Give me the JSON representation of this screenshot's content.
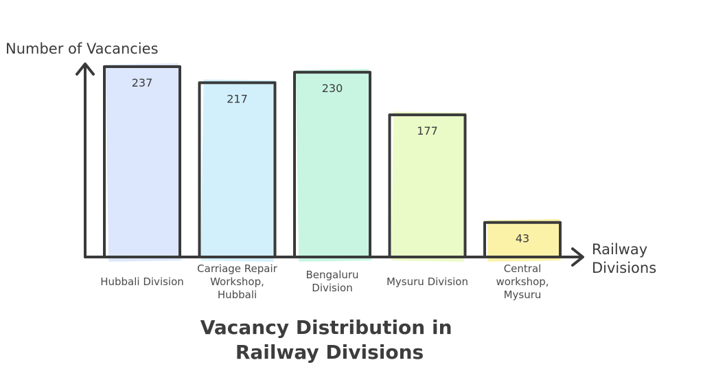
{
  "chart_data": {
    "type": "bar",
    "title": "Vacancy Distribution in Railway Divisions",
    "title_lines": [
      "Vacancy Distribution in",
      "Railway Divisions"
    ],
    "xlabel": "Railway Divisions",
    "xlabel_lines": [
      "Railway",
      "Divisions"
    ],
    "ylabel": "Number of Vacancies",
    "categories": [
      "Hubbali Division",
      "Carriage Repair Workshop, Hubbali",
      "Bengaluru Division",
      "Mysuru Division",
      "Central workshop, Mysuru"
    ],
    "category_lines": [
      [
        "Hubbali Division"
      ],
      [
        "Carriage Repair",
        "Workshop,",
        "Hubbali"
      ],
      [
        "Bengaluru",
        "Division"
      ],
      [
        "Mysuru Division"
      ],
      [
        "Central",
        "workshop,",
        "Mysuru"
      ]
    ],
    "values": [
      237,
      217,
      230,
      177,
      43
    ],
    "value_labels": [
      "237",
      "217",
      "230",
      "177",
      "43"
    ],
    "colors": [
      "#dce6fc",
      "#d2f0fc",
      "#c8f5e2",
      "#eafbc8",
      "#fbf2a8"
    ],
    "ylim": [
      0,
      237
    ],
    "grid": false,
    "legend": "none"
  }
}
